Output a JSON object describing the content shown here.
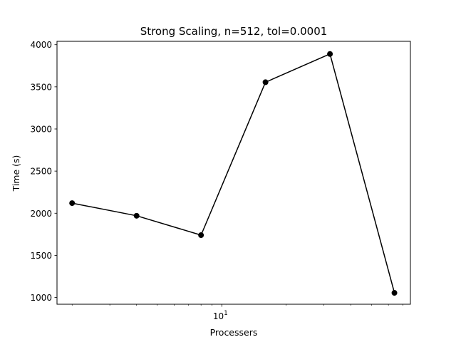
{
  "chart_data": {
    "type": "line",
    "title": "Strong Scaling, n=512, tol=0.0001",
    "xlabel": "Processers",
    "ylabel": "Time (s)",
    "xscale": "log",
    "xlim": [
      1.7,
      76
    ],
    "ylim": [
      920,
      4040
    ],
    "grid": false,
    "legend": "none",
    "x_major_ticks": [
      {
        "value": 10,
        "base": "10",
        "exp": "1"
      }
    ],
    "x_minor_ticks": [
      2,
      3,
      4,
      5,
      6,
      7,
      8,
      9,
      20,
      30,
      40,
      50,
      60,
      70
    ],
    "y_ticks": [
      1000,
      1500,
      2000,
      2500,
      3000,
      3500,
      4000
    ],
    "series": [
      {
        "color": "#000000",
        "marker": "circle",
        "x": [
          2,
          4,
          8,
          16,
          32,
          64
        ],
        "y": [
          2120,
          1970,
          1740,
          3555,
          3890,
          1055
        ]
      }
    ]
  }
}
